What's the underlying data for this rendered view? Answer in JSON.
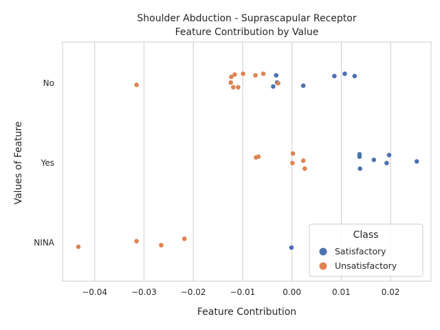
{
  "chart_data": {
    "type": "scatter",
    "title": "Shoulder Abduction - Suprascapular Receptor",
    "subtitle": "Feature Contribution by Value",
    "xlabel": "Feature Contribution",
    "ylabel": "Values of Feature",
    "categories": [
      "No",
      "Yes",
      "NINA"
    ],
    "xlim": [
      -0.0465,
      0.0282
    ],
    "x_ticks": [
      -0.04,
      -0.03,
      -0.02,
      -0.01,
      0.0,
      0.01,
      0.02
    ],
    "x_tick_labels": [
      "−0.04",
      "−0.03",
      "−0.02",
      "−0.01",
      "0.00",
      "0.01",
      "0.02"
    ],
    "grid": true,
    "legend": {
      "title": "Class",
      "placement": "lower-right"
    },
    "series": [
      {
        "name": "Satisfactory",
        "color": "#4c72b0",
        "points": [
          {
            "category": "No",
            "x": -0.0032,
            "jitter": -0.09
          },
          {
            "category": "No",
            "x": 0.0086,
            "jitter": -0.08
          },
          {
            "category": "No",
            "x": 0.0107,
            "jitter": -0.11
          },
          {
            "category": "No",
            "x": 0.0127,
            "jitter": -0.08
          },
          {
            "category": "No",
            "x": -0.003,
            "jitter": 0.0
          },
          {
            "category": "No",
            "x": -0.0038,
            "jitter": 0.05
          },
          {
            "category": "No",
            "x": 0.0023,
            "jitter": 0.04
          },
          {
            "category": "Yes",
            "x": 0.0137,
            "jitter": -0.1
          },
          {
            "category": "Yes",
            "x": 0.0197,
            "jitter": -0.09
          },
          {
            "category": "Yes",
            "x": 0.0137,
            "jitter": -0.07
          },
          {
            "category": "Yes",
            "x": 0.0166,
            "jitter": -0.03
          },
          {
            "category": "Yes",
            "x": 0.0253,
            "jitter": -0.01
          },
          {
            "category": "Yes",
            "x": 0.0192,
            "jitter": 0.01
          },
          {
            "category": "Yes",
            "x": 0.0138,
            "jitter": 0.08
          },
          {
            "category": "NINA",
            "x": -0.0001,
            "jitter": 0.07
          }
        ]
      },
      {
        "name": "Unsatisfactory",
        "color": "#dd8452",
        "points": [
          {
            "category": "No",
            "x": -0.0123,
            "jitter": -0.07
          },
          {
            "category": "No",
            "x": -0.0116,
            "jitter": -0.1
          },
          {
            "category": "No",
            "x": -0.0099,
            "jitter": -0.11
          },
          {
            "category": "No",
            "x": -0.0074,
            "jitter": -0.09
          },
          {
            "category": "No",
            "x": -0.0058,
            "jitter": -0.11
          },
          {
            "category": "No",
            "x": -0.0124,
            "jitter": 0.0
          },
          {
            "category": "No",
            "x": -0.0028,
            "jitter": 0.01
          },
          {
            "category": "No",
            "x": -0.0315,
            "jitter": 0.03
          },
          {
            "category": "No",
            "x": -0.0119,
            "jitter": 0.06
          },
          {
            "category": "No",
            "x": -0.0109,
            "jitter": 0.06
          },
          {
            "category": "Yes",
            "x": 0.0002,
            "jitter": -0.11
          },
          {
            "category": "Yes",
            "x": -0.0068,
            "jitter": -0.07
          },
          {
            "category": "Yes",
            "x": -0.0073,
            "jitter": -0.06
          },
          {
            "category": "Yes",
            "x": 0.0023,
            "jitter": -0.02
          },
          {
            "category": "Yes",
            "x": 0.0001,
            "jitter": 0.01
          },
          {
            "category": "Yes",
            "x": 0.0026,
            "jitter": 0.08
          },
          {
            "category": "NINA",
            "x": -0.0218,
            "jitter": -0.04
          },
          {
            "category": "NINA",
            "x": -0.0315,
            "jitter": -0.01
          },
          {
            "category": "NINA",
            "x": -0.0265,
            "jitter": 0.04
          },
          {
            "category": "NINA",
            "x": -0.0433,
            "jitter": 0.06
          }
        ]
      }
    ]
  }
}
